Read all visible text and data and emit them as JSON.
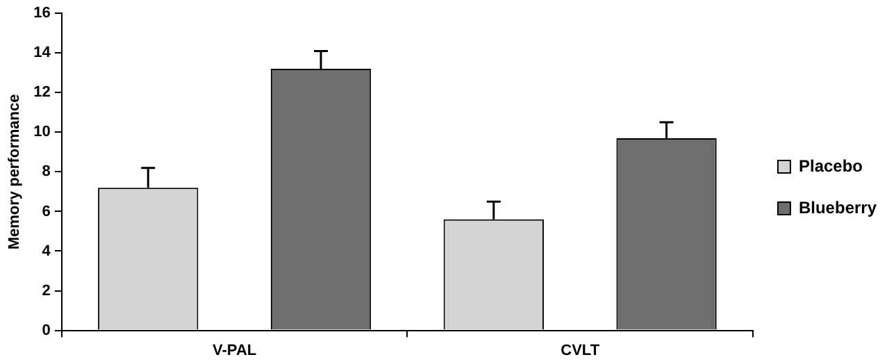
{
  "chart_data": {
    "type": "bar",
    "ylabel": "Memory performance",
    "categories": [
      "V-PAL",
      "CVLT"
    ],
    "series": [
      {
        "name": "Placebo",
        "color": "#d4d4d4",
        "values": [
          7.2,
          5.6
        ],
        "errors": [
          1.0,
          0.9
        ]
      },
      {
        "name": "Blueberry",
        "color": "#6e6e6e",
        "values": [
          13.2,
          9.7
        ],
        "errors": [
          0.9,
          0.8
        ]
      }
    ],
    "ylim": [
      0,
      16
    ],
    "yticks": [
      0,
      2,
      4,
      6,
      8,
      10,
      12,
      14,
      16
    ],
    "grid": false,
    "legend": "right"
  }
}
